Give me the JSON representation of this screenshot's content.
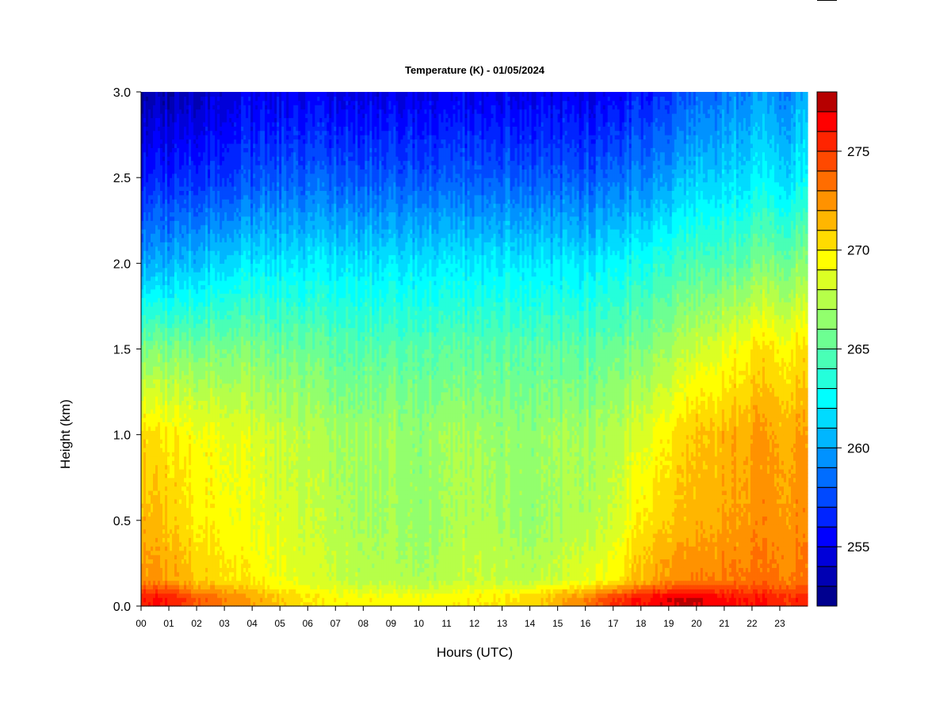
{
  "chart_data": {
    "type": "heatmap",
    "title": "Temperature (K) - 01/05/2024",
    "xlabel": "Hours (UTC)",
    "ylabel": "Height (km)",
    "x_range": [
      0,
      24
    ],
    "y_range": [
      0.0,
      3.0
    ],
    "x_ticks": [
      "00",
      "01",
      "02",
      "03",
      "04",
      "05",
      "06",
      "07",
      "08",
      "09",
      "10",
      "11",
      "12",
      "13",
      "14",
      "15",
      "16",
      "17",
      "18",
      "19",
      "20",
      "21",
      "22",
      "23"
    ],
    "y_ticks": [
      "0.0",
      "0.5",
      "1.0",
      "1.5",
      "2.0",
      "2.5",
      "3.0"
    ],
    "colorbar": {
      "range": [
        252,
        278
      ],
      "step": 1,
      "ticks": [
        "255",
        "260",
        "265",
        "270",
        "275"
      ],
      "colors": [
        "#00008f",
        "#0000b3",
        "#0000d9",
        "#0000ff",
        "#0024ff",
        "#0049ff",
        "#006dff",
        "#0092ff",
        "#00b6ff",
        "#00dbff",
        "#00ffff",
        "#24ffdb",
        "#49ffb6",
        "#6dff92",
        "#92ff6d",
        "#b6ff49",
        "#dbff24",
        "#ffff00",
        "#ffdb00",
        "#ffb600",
        "#ff9200",
        "#ff6d00",
        "#ff4900",
        "#ff2400",
        "#ff0000",
        "#b60000",
        "#800000"
      ]
    },
    "profiles": [
      {
        "hour": 0,
        "surface": 276,
        "h05": 271.5,
        "h10": 270.5,
        "h15": 266,
        "h20": 260,
        "h25": 256,
        "h30": 253
      },
      {
        "hour": 1,
        "surface": 276,
        "h05": 271,
        "h10": 270,
        "h15": 266,
        "h20": 260.5,
        "h25": 256.5,
        "h30": 253.5
      },
      {
        "hour": 2,
        "surface": 274,
        "h05": 270,
        "h10": 269.5,
        "h15": 266,
        "h20": 261,
        "h25": 257,
        "h30": 254
      },
      {
        "hour": 3,
        "surface": 273,
        "h05": 269.5,
        "h10": 269,
        "h15": 266,
        "h20": 261.5,
        "h25": 257,
        "h30": 254.5
      },
      {
        "hour": 4,
        "surface": 272,
        "h05": 269,
        "h10": 268.5,
        "h15": 266,
        "h20": 262,
        "h25": 257.5,
        "h30": 255
      },
      {
        "hour": 5,
        "surface": 271,
        "h05": 268.5,
        "h10": 268,
        "h15": 265.5,
        "h20": 262,
        "h25": 258,
        "h30": 255
      },
      {
        "hour": 6,
        "surface": 270,
        "h05": 268,
        "h10": 267.5,
        "h15": 265.5,
        "h20": 262,
        "h25": 258,
        "h30": 255
      },
      {
        "hour": 7,
        "surface": 269.5,
        "h05": 267.5,
        "h10": 267,
        "h15": 265,
        "h20": 262,
        "h25": 258,
        "h30": 255
      },
      {
        "hour": 8,
        "surface": 269.5,
        "h05": 267,
        "h10": 267,
        "h15": 265,
        "h20": 262,
        "h25": 258,
        "h30": 255
      },
      {
        "hour": 9,
        "surface": 269.5,
        "h05": 267,
        "h10": 267,
        "h15": 265,
        "h20": 262,
        "h25": 258,
        "h30": 255
      },
      {
        "hour": 10,
        "surface": 269.5,
        "h05": 266.5,
        "h10": 266.5,
        "h15": 265,
        "h20": 262,
        "h25": 258,
        "h30": 255
      },
      {
        "hour": 11,
        "surface": 269.5,
        "h05": 267,
        "h10": 267,
        "h15": 265,
        "h20": 262,
        "h25": 258,
        "h30": 255
      },
      {
        "hour": 12,
        "surface": 270,
        "h05": 267.5,
        "h10": 267,
        "h15": 265,
        "h20": 262,
        "h25": 258,
        "h30": 255
      },
      {
        "hour": 13,
        "surface": 270,
        "h05": 267,
        "h10": 266.5,
        "h15": 265,
        "h20": 262,
        "h25": 258,
        "h30": 255
      },
      {
        "hour": 14,
        "surface": 270.5,
        "h05": 266.5,
        "h10": 266.5,
        "h15": 265,
        "h20": 262,
        "h25": 258,
        "h30": 255
      },
      {
        "hour": 15,
        "surface": 271.5,
        "h05": 267,
        "h10": 267,
        "h15": 265,
        "h20": 262,
        "h25": 258,
        "h30": 255
      },
      {
        "hour": 16,
        "surface": 273,
        "h05": 267.5,
        "h10": 267,
        "h15": 265,
        "h20": 262,
        "h25": 258,
        "h30": 255
      },
      {
        "hour": 17,
        "surface": 275,
        "h05": 268,
        "h10": 267.5,
        "h15": 265.5,
        "h20": 262.5,
        "h25": 258.5,
        "h30": 255.5
      },
      {
        "hour": 18,
        "surface": 276,
        "h05": 270,
        "h10": 268.5,
        "h15": 266,
        "h20": 263,
        "h25": 259,
        "h30": 256
      },
      {
        "hour": 19,
        "surface": 277,
        "h05": 271,
        "h10": 270,
        "h15": 267,
        "h20": 264,
        "h25": 260,
        "h30": 257
      },
      {
        "hour": 20,
        "surface": 277,
        "h05": 271.5,
        "h10": 271,
        "h15": 268,
        "h20": 264.5,
        "h25": 261,
        "h30": 258
      },
      {
        "hour": 21,
        "surface": 276.5,
        "h05": 272,
        "h10": 271.5,
        "h15": 269,
        "h20": 265,
        "h25": 261.5,
        "h30": 259
      },
      {
        "hour": 22,
        "surface": 276,
        "h05": 272.5,
        "h10": 272,
        "h15": 270,
        "h20": 265.5,
        "h25": 262,
        "h30": 259.5
      },
      {
        "hour": 23,
        "surface": 275.5,
        "h05": 272.5,
        "h10": 272,
        "h15": 270,
        "h20": 266,
        "h25": 262,
        "h30": 259.5
      },
      {
        "hour": 24,
        "surface": 275.5,
        "h05": 272.5,
        "h10": 272,
        "h15": 270,
        "h20": 266,
        "h25": 262,
        "h30": 260
      }
    ]
  }
}
